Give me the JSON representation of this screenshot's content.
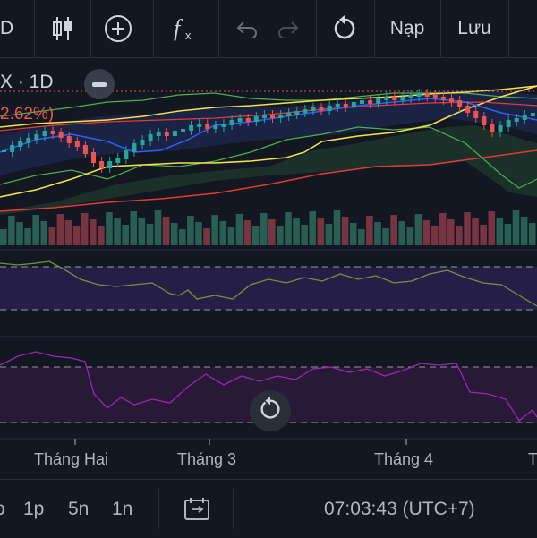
{
  "toolbar": {
    "left_partial": "D",
    "load_label": "Nạp",
    "save_label": "Lưu"
  },
  "legend": {
    "symbol_partial": "X · 1D",
    "change_partial": "2.62%)"
  },
  "time_axis": {
    "labels": [
      "Tháng Hai",
      "Tháng 3",
      "Tháng 4",
      "T"
    ]
  },
  "bottombar": {
    "partial_left": "o",
    "intervals": [
      "1p",
      "5n",
      "1n"
    ],
    "clock": "07:03:43 (UTC+7)"
  },
  "colors": {
    "background": "#131722",
    "up": "#26a69a",
    "down": "#ef5350",
    "ma_yellow": "#f5e14b",
    "band_green": "#4caf50",
    "ma_red": "#e53935",
    "ma_blue": "#2962ff",
    "oscillator1": "#7d8f3a",
    "oscillator2": "#9c27b0"
  },
  "icons": [
    "candles-icon",
    "add-indicator-icon",
    "fx-icon",
    "undo-icon",
    "redo-icon",
    "refresh-icon",
    "calendar-range-icon",
    "collapse-icon"
  ]
}
